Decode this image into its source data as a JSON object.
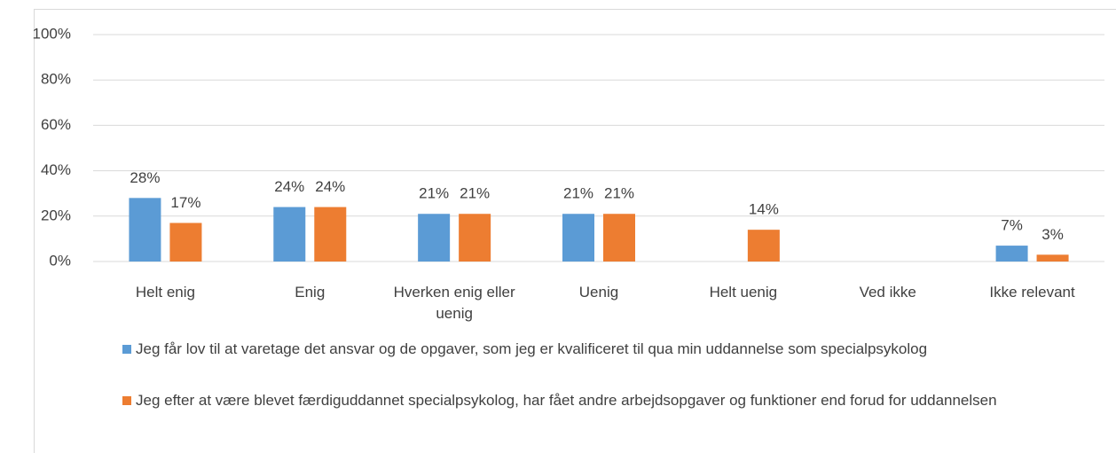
{
  "chart_data": {
    "type": "bar",
    "categories": [
      "Helt enig",
      "Enig",
      "Hverken enig eller uenig",
      "Uenig",
      "Helt uenig",
      "Ved ikke",
      "Ikke relevant"
    ],
    "series": [
      {
        "name": "Jeg får lov til at varetage det ansvar og de opgaver, som jeg er kvalificeret til qua min uddannelse som specialpsykolog",
        "color": "#5b9bd5",
        "values": [
          28,
          24,
          21,
          21,
          null,
          null,
          7
        ],
        "value_labels": [
          "28%",
          "24%",
          "21%",
          "21%",
          null,
          null,
          "7%"
        ]
      },
      {
        "name": "Jeg efter at være blevet færdiguddannet specialpsykolog, har fået andre arbejdsopgaver og funktioner end forud for uddannelsen",
        "color": "#ed7d31",
        "values": [
          17,
          24,
          21,
          21,
          14,
          null,
          3
        ],
        "value_labels": [
          "17%",
          "24%",
          "21%",
          "21%",
          "14%",
          null,
          "3%"
        ]
      }
    ],
    "ylim": [
      0,
      100
    ],
    "yticks": [
      {
        "value": 0,
        "label": "0%"
      },
      {
        "value": 20,
        "label": "20%"
      },
      {
        "value": 40,
        "label": "40%"
      },
      {
        "value": 60,
        "label": "60%"
      },
      {
        "value": 80,
        "label": "80%"
      },
      {
        "value": 100,
        "label": "100%"
      }
    ],
    "grid": true,
    "legend": "bottom"
  }
}
